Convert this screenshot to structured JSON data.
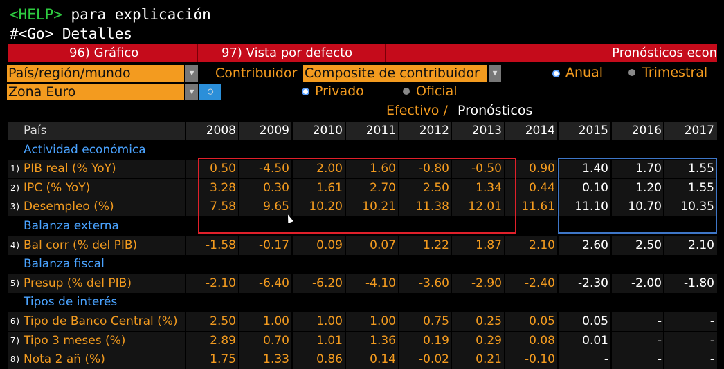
{
  "header": {
    "help_key": "<HELP>",
    "help_text": " para explicación",
    "go_line": "#<Go> Detalles"
  },
  "toolbar": {
    "grafico": "96) Gráfico",
    "vista": "97) Vista por defecto",
    "title": "Pronósticos econ"
  },
  "filters": {
    "region_select": "País/región/mundo",
    "zone_select": "Zona Euro",
    "contrib_label": "Contribuidor",
    "contrib_select": "Composite de contribuidor",
    "anual": "Anual",
    "trimestral": "Trimestral",
    "privado": "Privado",
    "oficial": "Oficial",
    "efectivo": "Efectivo /",
    "pronosticos": "Pronósticos"
  },
  "table": {
    "country_header": "País",
    "years": [
      "2008",
      "2009",
      "2010",
      "2011",
      "2012",
      "2013",
      "2014",
      "2015",
      "2016",
      "2017"
    ],
    "rows": [
      {
        "type": "section",
        "label": "Actividad económica"
      },
      {
        "type": "data",
        "num": "1)",
        "label": "PIB real (% YoY)",
        "values": [
          "0.50",
          "-4.50",
          "2.00",
          "1.60",
          "-0.80",
          "-0.50",
          "0.90",
          "1.40",
          "1.70",
          "1.55"
        ]
      },
      {
        "type": "data",
        "num": "2)",
        "label": "IPC (% YoY)",
        "values": [
          "3.28",
          "0.30",
          "1.61",
          "2.70",
          "2.50",
          "1.34",
          "0.44",
          "0.10",
          "1.20",
          "1.55"
        ]
      },
      {
        "type": "data",
        "num": "3)",
        "label": "Desempleo (%)",
        "values": [
          "7.58",
          "9.65",
          "10.20",
          "10.21",
          "11.38",
          "12.01",
          "11.61",
          "11.10",
          "10.70",
          "10.35"
        ]
      },
      {
        "type": "section",
        "label": "Balanza externa"
      },
      {
        "type": "data",
        "num": "4)",
        "label": "Bal corr (% del PIB)",
        "values": [
          "-1.58",
          "-0.17",
          "0.09",
          "0.07",
          "1.22",
          "1.87",
          "2.10",
          "2.60",
          "2.50",
          "2.10"
        ]
      },
      {
        "type": "section",
        "label": "Balanza fiscal"
      },
      {
        "type": "data",
        "num": "5)",
        "label": "Presup (% del PIB)",
        "values": [
          "-2.10",
          "-6.40",
          "-6.20",
          "-4.10",
          "-3.60",
          "-2.90",
          "-2.40",
          "-2.30",
          "-2.00",
          "-1.80"
        ]
      },
      {
        "type": "section",
        "label": "Tipos de interés"
      },
      {
        "type": "data",
        "num": "6)",
        "label": "Tipo de Banco Central (%)",
        "values": [
          "2.50",
          "1.00",
          "1.00",
          "1.00",
          "0.75",
          "0.25",
          "0.05",
          "0.05",
          "-",
          "-"
        ]
      },
      {
        "type": "data",
        "num": "7)",
        "label": "Tipo 3 meses (%)",
        "values": [
          "2.89",
          "0.70",
          "1.01",
          "1.36",
          "0.19",
          "0.29",
          "0.08",
          "0.01",
          "-",
          "-"
        ]
      },
      {
        "type": "data",
        "num": "8)",
        "label": "Nota 2 añ (%)",
        "values": [
          "1.75",
          "1.33",
          "0.86",
          "0.14",
          "-0.02",
          "0.21",
          "-0.10",
          "-",
          "-",
          "-"
        ]
      }
    ]
  },
  "colors": {
    "accent": "#f39b1f",
    "bar": "#c50b1b",
    "section": "#4aa3ff",
    "highlight_red": "#e0202a",
    "highlight_blue": "#3e76c7"
  }
}
